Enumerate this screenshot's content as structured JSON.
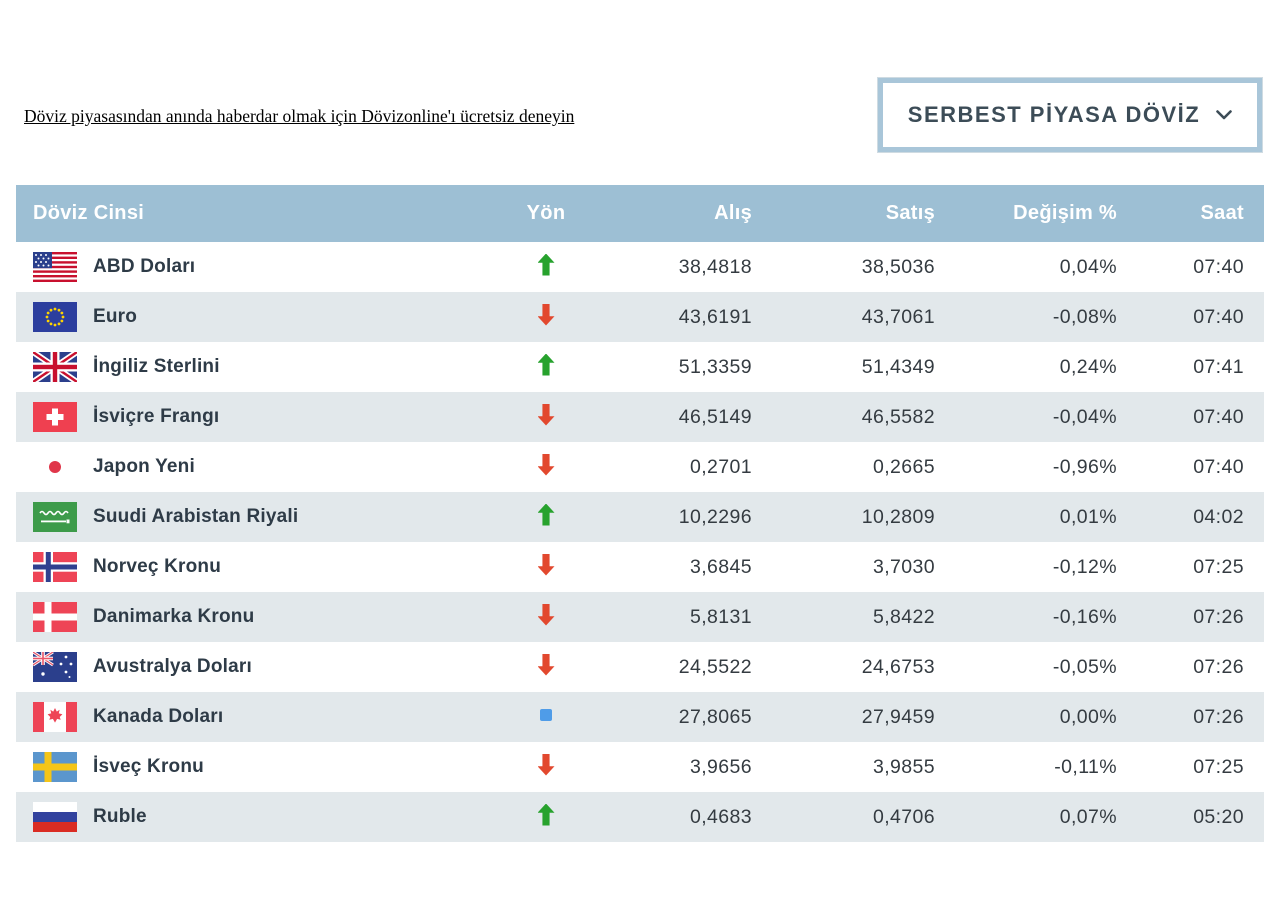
{
  "promo_link": "Döviz piyasasından anında haberdar olmak için Dövizonline'ı ücretsiz deneyin",
  "dropdown": {
    "label": "SERBEST PİYASA DÖVİZ",
    "icon": "chevron-down-icon"
  },
  "colors": {
    "header_bg": "#9dbfd4",
    "row_stripe": "#e2e8eb",
    "up_green": "#27a22d",
    "down_red": "#e2482e",
    "flat_blue": "#4f9ce8",
    "dropdown_border": "#a9c6d9"
  },
  "table": {
    "columns": [
      "Döviz Cinsi",
      "Yön",
      "Alış",
      "Satış",
      "Değişim %",
      "Saat"
    ],
    "rows": [
      {
        "flag": "us-flag-icon",
        "name": "ABD Doları",
        "direction": "up",
        "buy": "38,4818",
        "sell": "38,5036",
        "change": "0,04%",
        "time": "07:40"
      },
      {
        "flag": "eu-flag-icon",
        "name": "Euro",
        "direction": "down",
        "buy": "43,6191",
        "sell": "43,7061",
        "change": "-0,08%",
        "time": "07:40"
      },
      {
        "flag": "uk-flag-icon",
        "name": "İngiliz Sterlini",
        "direction": "up",
        "buy": "51,3359",
        "sell": "51,4349",
        "change": "0,24%",
        "time": "07:41"
      },
      {
        "flag": "switzerland-flag-icon",
        "name": "İsviçre Frangı",
        "direction": "down",
        "buy": "46,5149",
        "sell": "46,5582",
        "change": "-0,04%",
        "time": "07:40"
      },
      {
        "flag": "japan-flag-icon",
        "name": "Japon Yeni",
        "direction": "down",
        "buy": "0,2701",
        "sell": "0,2665",
        "change": "-0,96%",
        "time": "07:40"
      },
      {
        "flag": "saudi-arabia-flag-icon",
        "name": "Suudi Arabistan Riyali",
        "direction": "up",
        "buy": "10,2296",
        "sell": "10,2809",
        "change": "0,01%",
        "time": "04:02"
      },
      {
        "flag": "norway-flag-icon",
        "name": "Norveç Kronu",
        "direction": "down",
        "buy": "3,6845",
        "sell": "3,7030",
        "change": "-0,12%",
        "time": "07:25"
      },
      {
        "flag": "denmark-flag-icon",
        "name": "Danimarka Kronu",
        "direction": "down",
        "buy": "5,8131",
        "sell": "5,8422",
        "change": "-0,16%",
        "time": "07:26"
      },
      {
        "flag": "australia-flag-icon",
        "name": "Avustralya Doları",
        "direction": "down",
        "buy": "24,5522",
        "sell": "24,6753",
        "change": "-0,05%",
        "time": "07:26"
      },
      {
        "flag": "canada-flag-icon",
        "name": "Kanada Doları",
        "direction": "flat",
        "buy": "27,8065",
        "sell": "27,9459",
        "change": "0,00%",
        "time": "07:26"
      },
      {
        "flag": "sweden-flag-icon",
        "name": "İsveç Kronu",
        "direction": "down",
        "buy": "3,9656",
        "sell": "3,9855",
        "change": "-0,11%",
        "time": "07:25"
      },
      {
        "flag": "russia-flag-icon",
        "name": "Ruble",
        "direction": "up",
        "buy": "0,4683",
        "sell": "0,4706",
        "change": "0,07%",
        "time": "05:20"
      }
    ]
  }
}
